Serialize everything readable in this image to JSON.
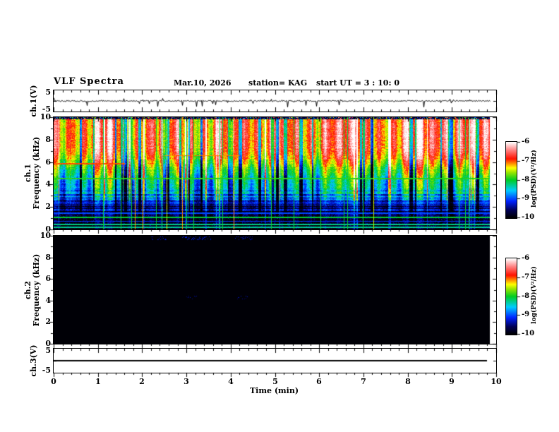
{
  "header": {
    "title": "VLF Spectra",
    "date": "Mar.10, 2026",
    "station": "station= KAG",
    "start_ut": "start UT =  3 : 10: 0"
  },
  "x_axis": {
    "label": "Time (min)",
    "ticks": [
      "0",
      "1",
      "2",
      "3",
      "4",
      "5",
      "6",
      "7",
      "8",
      "9",
      "10"
    ],
    "range": [
      0,
      10
    ],
    "minor_ticks_per_major": 5
  },
  "panels": [
    {
      "id": "ch1_voltage",
      "ylabel": "ch.1(V)",
      "ylim": [
        -5,
        5
      ],
      "ytick_labels": [
        "5",
        "-5"
      ]
    },
    {
      "id": "ch1_spectrogram",
      "ylabel_line1": "ch.1",
      "ylabel_line2": "Frequency (kHz)",
      "ylim": [
        0,
        10
      ],
      "ytick_labels": [
        "10",
        "8",
        "6",
        "4",
        "2",
        "0"
      ]
    },
    {
      "id": "ch2_spectrogram",
      "ylabel_line1": "ch.2",
      "ylabel_line2": "Frequency (kHz)",
      "ylim": [
        0,
        10
      ],
      "ytick_labels": [
        "10",
        "8",
        "6",
        "4",
        "2",
        "0"
      ]
    },
    {
      "id": "ch3_voltage",
      "ylabel": "ch.3(V)",
      "ylim": [
        -5,
        5
      ],
      "ytick_labels": [
        "5",
        "-5"
      ]
    }
  ],
  "colorbar": {
    "label": "log(PSD)(V²/Hz)",
    "tick_labels": [
      "-6",
      "-7",
      "-8",
      "-9",
      "-10"
    ],
    "range": [
      -10,
      -6
    ]
  },
  "colors": {
    "background": "#ffffff",
    "frame": "#000000",
    "trace": "#000000",
    "map_stops": [
      [
        0.0,
        "#000000"
      ],
      [
        0.1,
        "#000055"
      ],
      [
        0.22,
        "#0022ff"
      ],
      [
        0.36,
        "#00ccff"
      ],
      [
        0.5,
        "#00cc22"
      ],
      [
        0.6,
        "#99e600"
      ],
      [
        0.66,
        "#ffff00"
      ],
      [
        0.72,
        "#ff8800"
      ],
      [
        0.78,
        "#ff1100"
      ],
      [
        0.9,
        "#ff8888"
      ],
      [
        1.0,
        "#ffffff"
      ]
    ]
  },
  "chart_data": [
    {
      "type": "line",
      "name": "ch1_waveform",
      "ylabel": "ch.1(V)",
      "xlim": [
        0,
        10
      ],
      "ylim": [
        -5,
        5
      ],
      "baseline_v": 0,
      "noise_v": 0.25,
      "spike_direction": "mostly negative",
      "spike_max_v": 3,
      "data_end_min": 9.86,
      "seed": 7
    },
    {
      "type": "heatmap",
      "name": "ch1_spectrogram",
      "xlim": [
        0,
        10
      ],
      "ylim_khz": [
        0,
        10
      ],
      "zlim": [
        -10,
        -6
      ],
      "zlabel": "log(PSD)(V²/Hz)",
      "seed": 11,
      "data_end_min": 9.86,
      "psd_profile": [
        [
          0,
          -9.85
        ],
        [
          0.95,
          -9.85
        ],
        [
          1.15,
          -9.6
        ],
        [
          1.6,
          -9.55
        ],
        [
          2.1,
          -9.35
        ],
        [
          2.7,
          -8.95
        ],
        [
          3.3,
          -8.55
        ],
        [
          4.1,
          -8.25
        ],
        [
          4.7,
          -8.05
        ],
        [
          5.3,
          -7.75
        ],
        [
          5.9,
          -7.35
        ],
        [
          6.6,
          -6.95
        ],
        [
          7.2,
          -6.75
        ],
        [
          9.3,
          -6.7
        ],
        [
          9.82,
          -6.85
        ]
      ],
      "top_speckle_band_khz": [
        9.82,
        10
      ],
      "horizontal_lines": [
        {
          "f": 4.52,
          "psd": -7.9,
          "hw": 0.04,
          "t0": 0,
          "t1": 10
        },
        {
          "f": 1.07,
          "psd": -8.05,
          "hw": 0.06,
          "t0": 0,
          "t1": 10
        },
        {
          "f": 0.45,
          "psd": -8.25,
          "hw": 0.05,
          "t0": 0,
          "t1": 10
        },
        {
          "f": 0.18,
          "psd": -8.3,
          "hw": 0.05,
          "t0": 0,
          "t1": 10
        },
        {
          "f": 0.72,
          "psd": -9.05,
          "hw": 0.05,
          "t0": 0,
          "t1": 10
        },
        {
          "f": 1.45,
          "psd": -9.0,
          "hw": 0.05,
          "t0": 0,
          "t1": 10
        },
        {
          "f": 5.85,
          "psd": -7.0,
          "hw": 0.05,
          "t0": 0,
          "t1": 1.6
        },
        {
          "f": 6.55,
          "psd": -7.1,
          "hw": 0.04,
          "t0": 2.5,
          "t1": 4.2
        }
      ],
      "vertical_lines": {
        "green_count": 18,
        "green_psd": -8.05,
        "red_count": 4,
        "red_psd": -7.15,
        "orange_count": 2,
        "orange_psd": -7.5
      }
    },
    {
      "type": "heatmap",
      "name": "ch2_spectrogram",
      "xlim": [
        0,
        10
      ],
      "ylim_khz": [
        0,
        10
      ],
      "zlim": [
        -10,
        -6
      ],
      "zlabel": "log(PSD)(V²/Hz)",
      "seed": 23,
      "data_end_min": 9.86,
      "background_psd": -9.97,
      "speckle_patches": [
        {
          "t0": 2.2,
          "t1": 2.55,
          "f0": 9.6,
          "f1": 9.95,
          "density": 0.15,
          "psd": -9.3
        },
        {
          "t0": 2.9,
          "t1": 3.55,
          "f0": 9.6,
          "f1": 9.95,
          "density": 0.2,
          "psd": -9.25
        },
        {
          "t0": 4.1,
          "t1": 4.5,
          "f0": 9.6,
          "f1": 9.95,
          "density": 0.15,
          "psd": -9.3
        },
        {
          "t0": 3.0,
          "t1": 3.3,
          "f0": 4.1,
          "f1": 4.45,
          "density": 0.07,
          "psd": -9.4
        },
        {
          "t0": 4.15,
          "t1": 4.4,
          "f0": 4.1,
          "f1": 4.45,
          "density": 0.07,
          "psd": -9.4
        }
      ]
    },
    {
      "type": "line",
      "name": "ch3_waveform",
      "ylabel": "ch.3(V)",
      "xlim": [
        0,
        10
      ],
      "ylim": [
        -5,
        5
      ],
      "baseline_v": 0,
      "flat": true,
      "data_end_min": 9.8
    }
  ]
}
